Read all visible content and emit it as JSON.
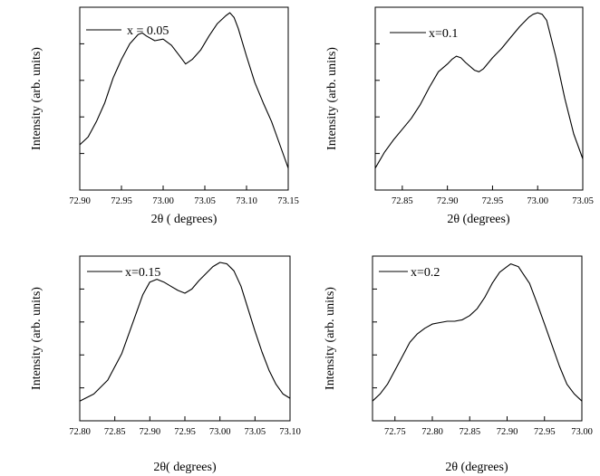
{
  "chart_data": [
    {
      "type": "line",
      "xlabel": "2θ ( degrees)",
      "ylabel": "Intensity (arb. units)",
      "xlim": [
        72.9,
        73.15
      ],
      "ylim": [
        0,
        1
      ],
      "xticks": [
        "72.90",
        "72.95",
        "73.00",
        "73.05",
        "73.10",
        "73.15"
      ],
      "legend": "x = 0.05",
      "legend_position": "top-left",
      "series": [
        {
          "name": "x = 0.05",
          "x": [
            72.9,
            72.91,
            72.92,
            72.93,
            72.94,
            72.95,
            72.96,
            72.97,
            72.975,
            72.98,
            72.99,
            73.0,
            73.01,
            73.02,
            73.027,
            73.035,
            73.045,
            73.055,
            73.065,
            73.075,
            73.08,
            73.085,
            73.09,
            73.1,
            73.11,
            73.12,
            73.13,
            73.14,
            73.15
          ],
          "y": [
            0.15,
            0.2,
            0.3,
            0.42,
            0.58,
            0.7,
            0.8,
            0.86,
            0.87,
            0.85,
            0.82,
            0.83,
            0.79,
            0.72,
            0.67,
            0.7,
            0.76,
            0.85,
            0.93,
            0.98,
            1.0,
            0.97,
            0.9,
            0.72,
            0.55,
            0.42,
            0.3,
            0.15,
            0.0
          ]
        }
      ]
    },
    {
      "type": "line",
      "xlabel": "2θ (degrees)",
      "ylabel": "Intensity (arb. units)",
      "xlim": [
        72.82,
        73.05
      ],
      "ylim": [
        0,
        1
      ],
      "xticks": [
        "72.85",
        "72.90",
        "72.95",
        "73.00",
        "73.05"
      ],
      "legend": "x=0.1",
      "legend_position": "top-left",
      "series": [
        {
          "name": "x=0.1",
          "x": [
            72.82,
            72.83,
            72.84,
            72.85,
            72.86,
            72.87,
            72.88,
            72.89,
            72.9,
            72.905,
            72.91,
            72.915,
            72.92,
            72.93,
            72.935,
            72.94,
            72.95,
            72.96,
            72.97,
            72.98,
            72.99,
            72.995,
            73.0,
            73.005,
            73.01,
            73.02,
            73.03,
            73.04,
            73.05
          ],
          "y": [
            0.0,
            0.1,
            0.18,
            0.25,
            0.32,
            0.41,
            0.52,
            0.62,
            0.67,
            0.7,
            0.72,
            0.71,
            0.68,
            0.63,
            0.62,
            0.64,
            0.71,
            0.77,
            0.84,
            0.91,
            0.97,
            0.99,
            1.0,
            0.99,
            0.95,
            0.72,
            0.45,
            0.22,
            0.06
          ]
        }
      ]
    },
    {
      "type": "line",
      "xlabel": "2θ( degrees)",
      "ylabel": "Intensity (arb. units)",
      "xlim": [
        72.8,
        73.1
      ],
      "ylim": [
        0,
        1
      ],
      "xticks": [
        "72.80",
        "72.85",
        "72.90",
        "72.95",
        "73.00",
        "73.05",
        "73.10"
      ],
      "legend": "x=0.15",
      "legend_position": "top-left",
      "series": [
        {
          "name": "x=0.15",
          "x": [
            72.8,
            72.82,
            72.84,
            72.86,
            72.88,
            72.89,
            72.9,
            72.91,
            72.92,
            72.93,
            72.94,
            72.95,
            72.96,
            72.97,
            72.98,
            72.99,
            73.0,
            73.01,
            73.02,
            73.03,
            73.04,
            73.05,
            73.06,
            73.07,
            73.08,
            73.09,
            73.1
          ],
          "y": [
            0.0,
            0.05,
            0.15,
            0.34,
            0.62,
            0.76,
            0.85,
            0.87,
            0.85,
            0.82,
            0.79,
            0.77,
            0.8,
            0.86,
            0.91,
            0.96,
            0.99,
            0.98,
            0.93,
            0.82,
            0.66,
            0.5,
            0.35,
            0.22,
            0.12,
            0.05,
            0.02
          ]
        }
      ]
    },
    {
      "type": "line",
      "xlabel": "2θ (degrees)",
      "ylabel": "Intensity (arb. units)",
      "xlim": [
        72.72,
        73.0
      ],
      "ylim": [
        0,
        1
      ],
      "xticks": [
        "72.75",
        "72.80",
        "72.85",
        "72.90",
        "72.95",
        "73.00"
      ],
      "legend": "x=0.2",
      "legend_position": "top-left",
      "series": [
        {
          "name": "x=0.2",
          "x": [
            72.72,
            72.73,
            72.74,
            72.75,
            72.76,
            72.77,
            72.78,
            72.79,
            72.8,
            72.81,
            72.82,
            72.83,
            72.84,
            72.85,
            72.86,
            72.87,
            72.88,
            72.89,
            72.9,
            72.905,
            72.91,
            72.915,
            72.92,
            72.93,
            72.94,
            72.95,
            72.96,
            72.97,
            72.98,
            72.99,
            73.0
          ],
          "y": [
            0.0,
            0.05,
            0.12,
            0.22,
            0.32,
            0.42,
            0.48,
            0.52,
            0.55,
            0.56,
            0.57,
            0.57,
            0.58,
            0.61,
            0.66,
            0.74,
            0.84,
            0.92,
            0.96,
            0.98,
            0.97,
            0.96,
            0.92,
            0.84,
            0.7,
            0.55,
            0.4,
            0.25,
            0.12,
            0.05,
            0.0
          ]
        }
      ]
    }
  ]
}
